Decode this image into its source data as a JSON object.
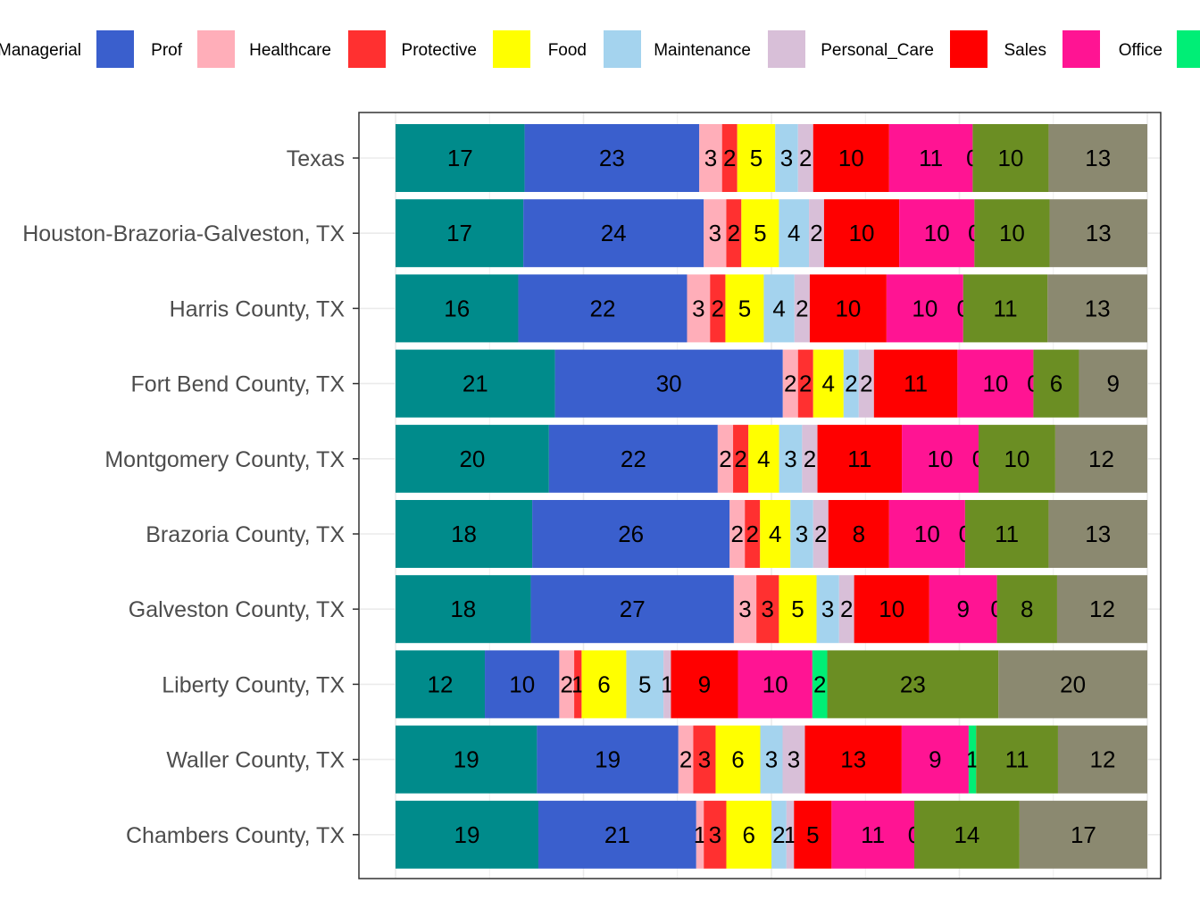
{
  "chart_data": {
    "type": "bar",
    "orientation": "horizontal",
    "stacked": true,
    "normalized": true,
    "legend_position": "top",
    "grid": true,
    "categories": [
      "Texas",
      "Houston-Brazoria-Galveston, TX",
      "Harris County, TX",
      "Fort Bend County, TX",
      "Montgomery County, TX",
      "Brazoria County, TX",
      "Galveston County, TX",
      "Liberty County, TX",
      "Waller County, TX",
      "Chambers County, TX"
    ],
    "series": [
      {
        "name": "Managerial",
        "color": "#008B8B",
        "values": [
          17,
          17,
          16,
          21,
          20,
          18,
          18,
          12,
          19,
          19
        ]
      },
      {
        "name": "Prof",
        "color": "#3A5FCD",
        "values": [
          23,
          24,
          22,
          30,
          22,
          26,
          27,
          10,
          19,
          21
        ]
      },
      {
        "name": "Healthcare",
        "color": "#FFAEB9",
        "values": [
          3,
          3,
          3,
          2,
          2,
          2,
          3,
          2,
          2,
          1
        ]
      },
      {
        "name": "Protective",
        "color": "#FF3030",
        "values": [
          2,
          2,
          2,
          2,
          2,
          2,
          3,
          1,
          3,
          3
        ]
      },
      {
        "name": "Food",
        "color": "#FFFF00",
        "values": [
          5,
          5,
          5,
          4,
          4,
          4,
          5,
          6,
          6,
          6
        ]
      },
      {
        "name": "Maintenance",
        "color": "#A4D3EE",
        "values": [
          3,
          4,
          4,
          2,
          3,
          3,
          3,
          5,
          3,
          2
        ]
      },
      {
        "name": "Personal_Care",
        "color": "#D8BFD8",
        "values": [
          2,
          2,
          2,
          2,
          2,
          2,
          2,
          1,
          3,
          1
        ]
      },
      {
        "name": "Sales",
        "color": "#FF0000",
        "values": [
          10,
          10,
          10,
          11,
          11,
          8,
          10,
          9,
          13,
          5
        ]
      },
      {
        "name": "Office",
        "color": "#FF1493",
        "values": [
          11,
          10,
          10,
          10,
          10,
          10,
          9,
          10,
          9,
          11
        ]
      },
      {
        "name": "",
        "color": "#00EE76",
        "values": [
          0,
          0,
          0,
          0,
          0,
          0,
          0,
          2,
          1,
          0
        ]
      },
      {
        "name": "",
        "color": "#6B8E23",
        "values": [
          10,
          10,
          11,
          6,
          10,
          11,
          8,
          23,
          11,
          14
        ]
      },
      {
        "name": "",
        "color": "#8B8970",
        "values": [
          13,
          13,
          13,
          9,
          12,
          13,
          12,
          20,
          12,
          17
        ]
      }
    ]
  }
}
